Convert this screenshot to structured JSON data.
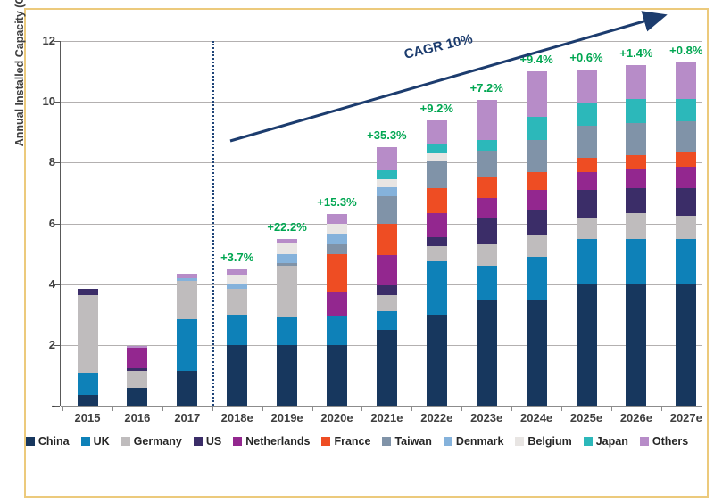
{
  "frame": {
    "border_color": "#ecca7c",
    "background": "#ffffff"
  },
  "chart_data": {
    "type": "bar",
    "stacked": true,
    "ylabel": "Annual Installed Capacity (GW)",
    "ylim": [
      0,
      12
    ],
    "yticks": [
      0,
      2,
      4,
      6,
      8,
      10,
      12
    ],
    "ytick_labels": [
      "-",
      "2",
      "4",
      "6",
      "8",
      "10",
      "12"
    ],
    "grid": "horizontal",
    "legend_position": "bottom",
    "categories": [
      "2015",
      "2016",
      "2017",
      "2018e",
      "2019e",
      "2020e",
      "2021e",
      "2022e",
      "2023e",
      "2024e",
      "2025e",
      "2026e",
      "2027e"
    ],
    "series": [
      {
        "name": "China",
        "color": "#17375e",
        "values": [
          0.35,
          0.6,
          1.15,
          2.0,
          2.0,
          2.0,
          2.5,
          3.0,
          3.5,
          3.5,
          4.0,
          4.0,
          4.0
        ]
      },
      {
        "name": "UK",
        "color": "#0e81b8",
        "values": [
          0.75,
          0.0,
          1.7,
          1.0,
          0.9,
          0.95,
          0.6,
          1.75,
          1.1,
          1.4,
          1.5,
          1.5,
          1.5
        ]
      },
      {
        "name": "Germany",
        "color": "#bfbcbd",
        "values": [
          2.55,
          0.55,
          1.25,
          0.85,
          1.7,
          0.0,
          0.55,
          0.5,
          0.7,
          0.7,
          0.7,
          0.85,
          0.75
        ]
      },
      {
        "name": "US",
        "color": "#3b2d68",
        "values": [
          0.2,
          0.07,
          0.0,
          0.0,
          0.0,
          0.0,
          0.3,
          0.3,
          0.85,
          0.85,
          0.9,
          0.8,
          0.9
        ]
      },
      {
        "name": "Netherlands",
        "color": "#93278f",
        "values": [
          0.0,
          0.7,
          0.0,
          0.0,
          0.0,
          0.8,
          1.0,
          0.8,
          0.7,
          0.65,
          0.6,
          0.65,
          0.7
        ]
      },
      {
        "name": "France",
        "color": "#ee4d23",
        "values": [
          0.0,
          0.0,
          0.0,
          0.0,
          0.0,
          1.25,
          1.05,
          0.8,
          0.65,
          0.6,
          0.45,
          0.45,
          0.5
        ]
      },
      {
        "name": "Taiwan",
        "color": "#8093a8",
        "values": [
          0.0,
          0.0,
          0.0,
          0.0,
          0.1,
          0.3,
          0.9,
          0.9,
          0.9,
          1.05,
          1.05,
          1.05,
          1.0
        ]
      },
      {
        "name": "Denmark",
        "color": "#85b2db",
        "values": [
          0.0,
          0.0,
          0.1,
          0.15,
          0.3,
          0.35,
          0.3,
          0.0,
          0.0,
          0.0,
          0.0,
          0.0,
          0.0
        ]
      },
      {
        "name": "Belgium",
        "color": "#e8e5e3",
        "values": [
          0.0,
          0.0,
          0.0,
          0.3,
          0.35,
          0.35,
          0.25,
          0.25,
          0.0,
          0.0,
          0.0,
          0.0,
          0.0
        ]
      },
      {
        "name": "Japan",
        "color": "#2cb8ba",
        "values": [
          0.0,
          0.0,
          0.0,
          0.0,
          0.0,
          0.0,
          0.3,
          0.3,
          0.35,
          0.75,
          0.75,
          0.8,
          0.75
        ]
      },
      {
        "name": "Others",
        "color": "#b78cc8",
        "values": [
          0.0,
          0.05,
          0.15,
          0.2,
          0.15,
          0.3,
          0.75,
          0.8,
          1.3,
          1.5,
          1.1,
          1.1,
          1.2
        ]
      }
    ],
    "growth_labels": [
      "",
      "",
      "",
      "+3.7%",
      "+22.2%",
      "+15.3%",
      "+35.3%",
      "+9.2%",
      "+7.2%",
      "+9.4%",
      "+0.6%",
      "+1.4%",
      "+0.8%"
    ],
    "annotations": {
      "cagr_text": "CAGR 10%",
      "divider_between": [
        "2017",
        "2018e"
      ],
      "trend_arrow": "upward from 2018e to 2027e"
    },
    "accent_colors": {
      "growth_label_green": "#00a651",
      "arrow_navy": "#1c3c6e"
    }
  }
}
